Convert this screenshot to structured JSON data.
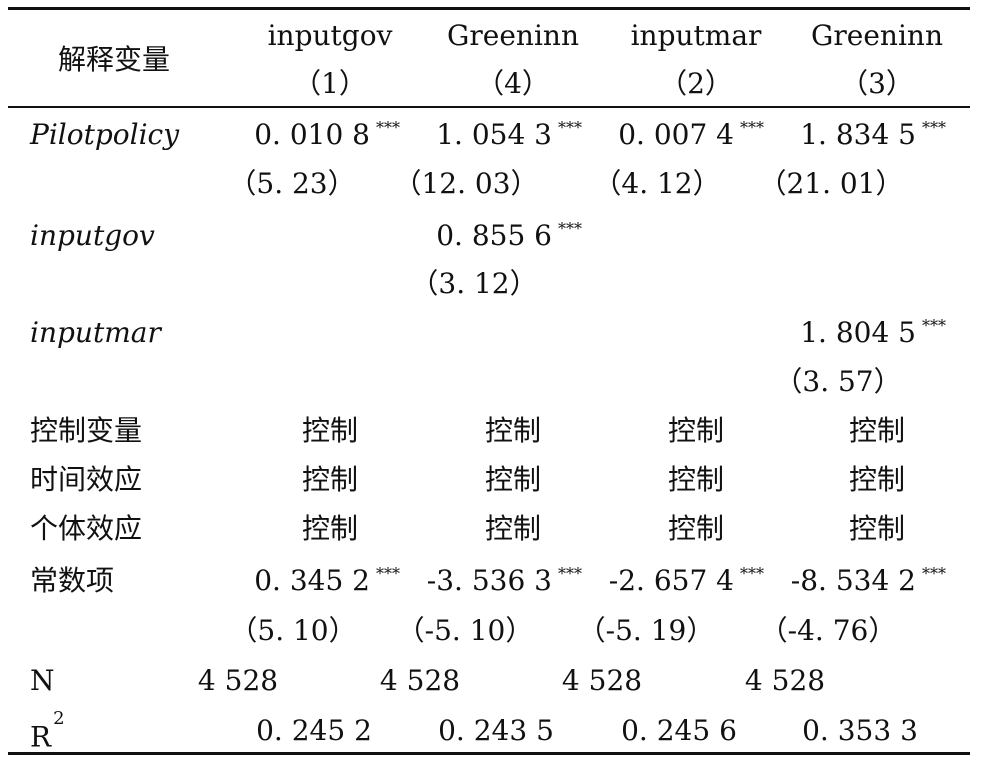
{
  "header": {
    "var_label": "解释变量",
    "columns": [
      {
        "name": "inputgov",
        "num": "（1）"
      },
      {
        "name": "Greeninn",
        "num": "（4）"
      },
      {
        "name": "inputmar",
        "num": "（2）"
      },
      {
        "name": "Greeninn",
        "num": "（3）"
      }
    ]
  },
  "rows": {
    "pilot": {
      "label": "Pilotpolicy",
      "coef": [
        "0. 010 8",
        "1. 054 3",
        "0. 007 4",
        "1. 834 5"
      ],
      "stars": [
        "***",
        "***",
        "***",
        "***"
      ],
      "t": [
        "（5. 23）",
        "（12. 03）",
        "（4. 12）",
        "（21. 01）"
      ]
    },
    "inputgov": {
      "label": "inputgov",
      "coef": "0. 855 6",
      "stars": "***",
      "t": "（3. 12）"
    },
    "inputmar": {
      "label": "inputmar",
      "coef": "1. 804 5",
      "stars": "***",
      "t": "（3. 57）"
    },
    "controls": {
      "label": "控制变量",
      "vals": [
        "控制",
        "控制",
        "控制",
        "控制"
      ]
    },
    "time": {
      "label": "时间效应",
      "vals": [
        "控制",
        "控制",
        "控制",
        "控制"
      ]
    },
    "indiv": {
      "label": "个体效应",
      "vals": [
        "控制",
        "控制",
        "控制",
        "控制"
      ]
    },
    "const": {
      "label": "常数项",
      "coef": [
        "0. 345 2",
        "-3. 536 3",
        "-2. 657 4",
        "-8. 534 2"
      ],
      "stars": [
        "***",
        "***",
        "***",
        "***"
      ],
      "t": [
        "（5. 10）",
        "（-5. 10）",
        "（-5. 19）",
        "（-4. 76）"
      ]
    },
    "n": {
      "label": "N",
      "vals": [
        "4 528",
        "4 528",
        "4 528",
        "4 528"
      ]
    },
    "r2": {
      "label": "R",
      "sup": "2",
      "vals": [
        "0. 245 2",
        "0. 243 5",
        "0. 245 6",
        "0. 353 3"
      ]
    }
  }
}
